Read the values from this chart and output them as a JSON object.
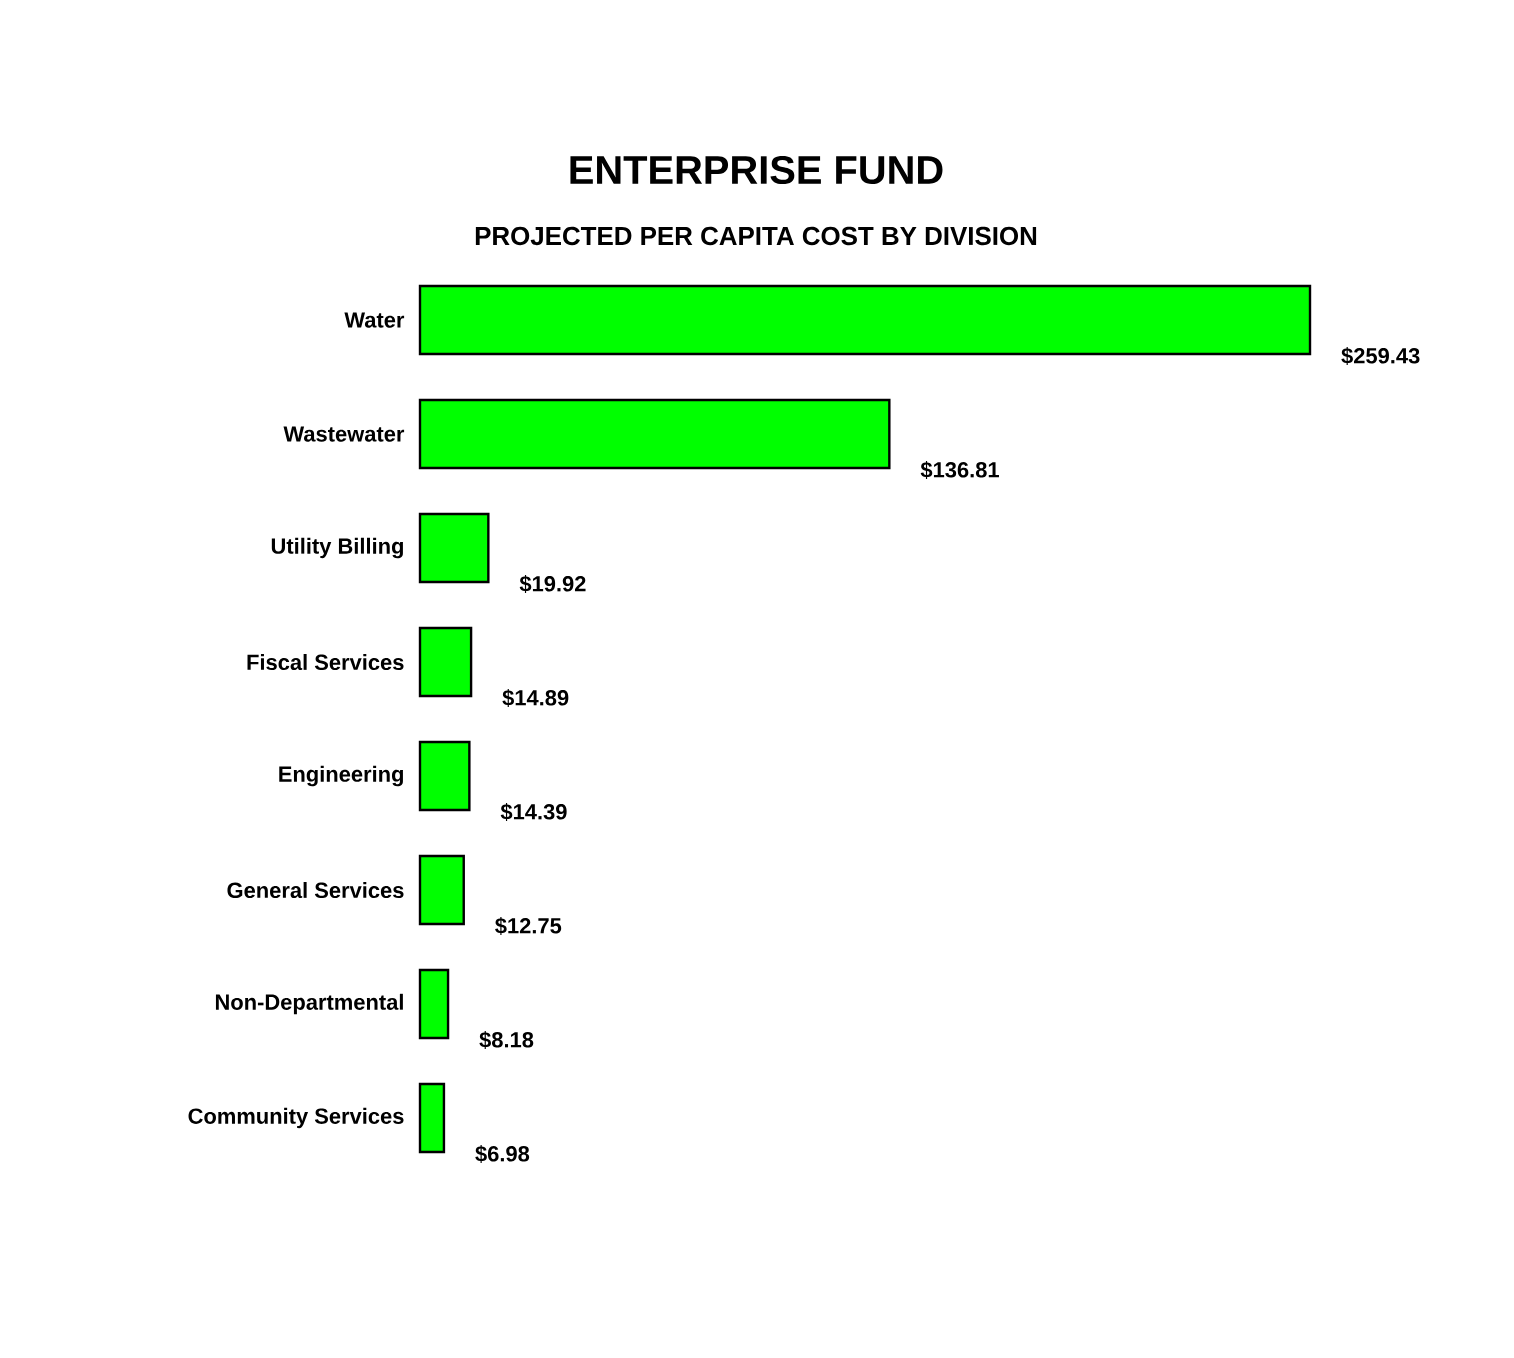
{
  "chart_data": {
    "type": "bar",
    "orientation": "horizontal",
    "title": "ENTERPRISE FUND",
    "subtitle": "PROJECTED PER CAPITA COST BY DIVISION",
    "categories": [
      "Water",
      "Wastewater",
      "Utility Billing",
      "Fiscal Services",
      "Engineering",
      "General Services",
      "Non-Departmental",
      "Community Services"
    ],
    "values": [
      259.43,
      136.81,
      19.92,
      14.89,
      14.39,
      12.75,
      8.18,
      6.98
    ],
    "value_labels": [
      "$259.43",
      "$136.81",
      "$19.92",
      "$14.89",
      "$14.39",
      "$12.75",
      "$8.18",
      "$6.98"
    ],
    "color": "#00ff00"
  }
}
